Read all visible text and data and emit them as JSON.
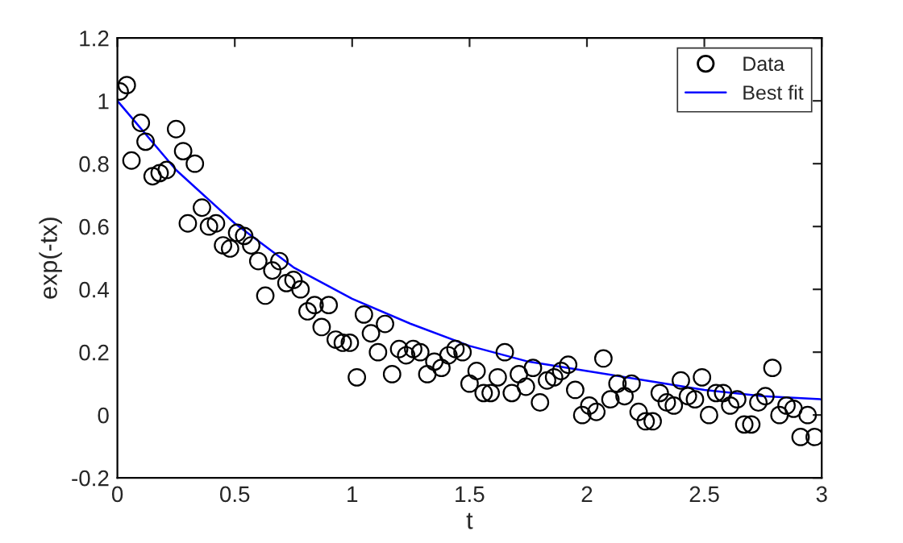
{
  "chart_data": {
    "type": "scatter",
    "xlabel": "t",
    "ylabel": "exp(-tx)",
    "xlim": [
      0,
      3
    ],
    "xticks": [
      0,
      0.5,
      1,
      1.5,
      2,
      2.5,
      3
    ],
    "ylim": [
      -0.2,
      1.2
    ],
    "yticks": [
      -0.2,
      0,
      0.2,
      0.4,
      0.6,
      0.8,
      1,
      1.2
    ],
    "grid": false,
    "legend": "top right",
    "series": [
      {
        "name": "Data",
        "color": "#000000",
        "marker": "circle",
        "x": [
          0.01,
          0.04,
          0.06,
          0.1,
          0.12,
          0.15,
          0.18,
          0.21,
          0.25,
          0.28,
          0.3,
          0.33,
          0.36,
          0.39,
          0.42,
          0.45,
          0.48,
          0.51,
          0.54,
          0.57,
          0.6,
          0.63,
          0.66,
          0.69,
          0.72,
          0.75,
          0.78,
          0.81,
          0.84,
          0.87,
          0.9,
          0.93,
          0.96,
          0.99,
          1.02,
          1.05,
          1.08,
          1.11,
          1.14,
          1.17,
          1.2,
          1.23,
          1.26,
          1.29,
          1.32,
          1.35,
          1.38,
          1.41,
          1.44,
          1.47,
          1.5,
          1.53,
          1.56,
          1.59,
          1.62,
          1.65,
          1.68,
          1.71,
          1.74,
          1.77,
          1.8,
          1.83,
          1.86,
          1.89,
          1.92,
          1.95,
          1.98,
          2.01,
          2.04,
          2.07,
          2.1,
          2.13,
          2.16,
          2.19,
          2.22,
          2.25,
          2.28,
          2.31,
          2.34,
          2.37,
          2.4,
          2.43,
          2.46,
          2.49,
          2.52,
          2.55,
          2.58,
          2.61,
          2.64,
          2.67,
          2.7,
          2.73,
          2.76,
          2.79,
          2.82,
          2.85,
          2.88,
          2.91,
          2.94,
          2.97
        ],
        "values": [
          1.03,
          1.05,
          0.81,
          0.93,
          0.87,
          0.76,
          0.77,
          0.78,
          0.91,
          0.84,
          0.61,
          0.8,
          0.66,
          0.6,
          0.61,
          0.54,
          0.53,
          0.58,
          0.57,
          0.54,
          0.49,
          0.38,
          0.46,
          0.49,
          0.42,
          0.43,
          0.4,
          0.33,
          0.35,
          0.28,
          0.35,
          0.24,
          0.23,
          0.23,
          0.12,
          0.32,
          0.26,
          0.2,
          0.29,
          0.13,
          0.21,
          0.19,
          0.21,
          0.2,
          0.13,
          0.17,
          0.15,
          0.19,
          0.21,
          0.2,
          0.1,
          0.14,
          0.07,
          0.07,
          0.12,
          0.2,
          0.07,
          0.13,
          0.09,
          0.15,
          0.04,
          0.11,
          0.12,
          0.14,
          0.16,
          0.08,
          0.0,
          0.03,
          0.01,
          0.18,
          0.05,
          0.1,
          0.06,
          0.1,
          0.01,
          -0.02,
          -0.02,
          0.07,
          0.04,
          0.03,
          0.11,
          0.06,
          0.05,
          0.12,
          0.0,
          0.07,
          0.07,
          0.03,
          0.05,
          -0.03,
          -0.03,
          0.04,
          0.06,
          0.15,
          0.0,
          0.03,
          0.02,
          -0.07,
          0.0,
          -0.07
        ]
      },
      {
        "name": "Best fit",
        "type": "line",
        "color": "#0000ff",
        "line_style": "solid",
        "x": [
          0,
          0.25,
          0.5,
          0.75,
          1,
          1.25,
          1.5,
          1.75,
          2,
          2.25,
          2.5,
          2.75,
          3
        ],
        "values": [
          1,
          0.78,
          0.61,
          0.47,
          0.37,
          0.29,
          0.22,
          0.17,
          0.14,
          0.11,
          0.08,
          0.06,
          0.05
        ]
      }
    ]
  }
}
